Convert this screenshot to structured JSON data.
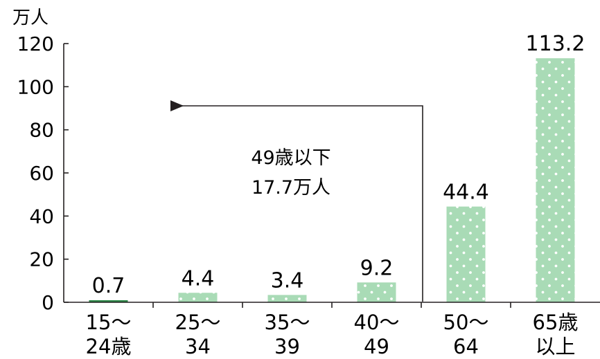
{
  "chart_data": {
    "type": "bar",
    "unit_label": "万人",
    "categories": [
      [
        "15～",
        "24歳"
      ],
      [
        "25～",
        "34"
      ],
      [
        "35～",
        "39"
      ],
      [
        "40～",
        "49"
      ],
      [
        "50～",
        "64"
      ],
      [
        "65歳",
        "以上"
      ]
    ],
    "values": [
      0.7,
      4.4,
      3.4,
      9.2,
      44.4,
      113.2
    ],
    "value_labels": [
      "0.7",
      "4.4",
      "3.4",
      "9.2",
      "44.4",
      "113.2"
    ],
    "ylim": [
      0,
      120
    ],
    "yticks": [
      0,
      20,
      40,
      60,
      80,
      100,
      120
    ],
    "annotation": {
      "lines": [
        "49歳以下",
        "17.7万人"
      ]
    },
    "colors": {
      "bar_fill": "#a9dbb6",
      "bar_dot": "#ffffff",
      "small_bar": "#2f8a4a",
      "axis": "#231f20"
    },
    "grid": false,
    "legend": "none"
  }
}
